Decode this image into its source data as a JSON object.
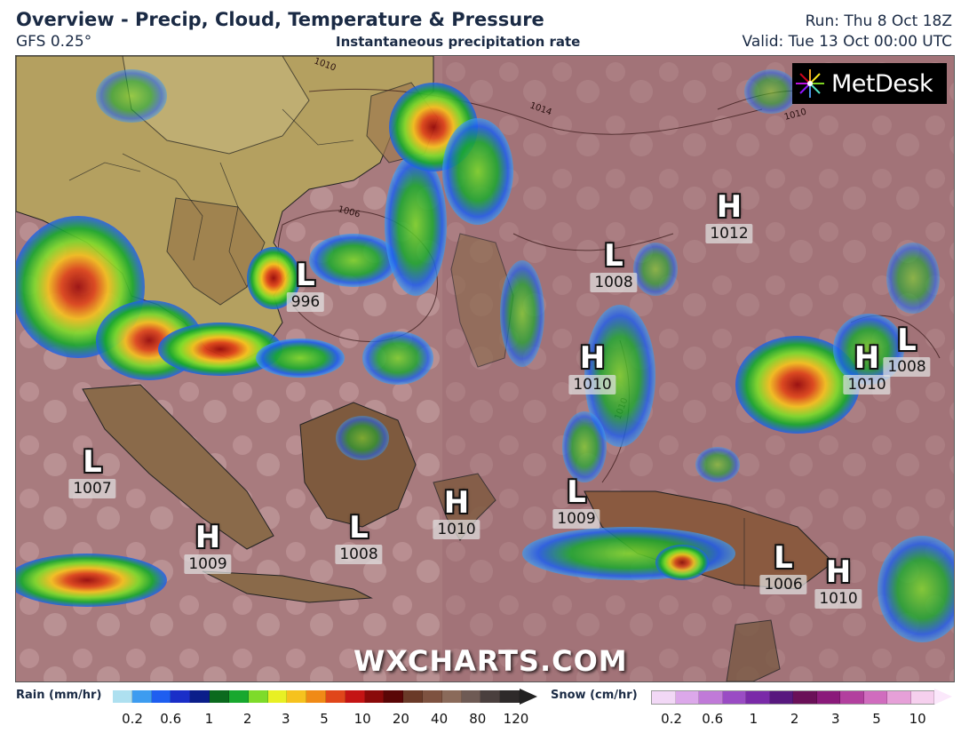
{
  "header": {
    "title": "Overview - Precip, Cloud, Temperature & Pressure",
    "model": "GFS 0.25°",
    "subtitle": "Instantaneous precipitation rate",
    "run": "Run: Thu 8 Oct 18Z",
    "valid": "Valid: Tue 13 Oct 00:00 UTC"
  },
  "branding": {
    "logo_text": "MetDesk",
    "watermark": "WXCHARTS.COM"
  },
  "pressure_centers": [
    {
      "type": "L",
      "value": "996"
    },
    {
      "type": "H",
      "value": "1012"
    },
    {
      "type": "L",
      "value": "1008"
    },
    {
      "type": "H",
      "value": "1010"
    },
    {
      "type": "H",
      "value": "1010"
    },
    {
      "type": "L",
      "value": "1008"
    },
    {
      "type": "L",
      "value": "1007"
    },
    {
      "type": "H",
      "value": "1009"
    },
    {
      "type": "L",
      "value": "1008"
    },
    {
      "type": "H",
      "value": "1010"
    },
    {
      "type": "L",
      "value": "1009"
    },
    {
      "type": "L",
      "value": "1006"
    },
    {
      "type": "H",
      "value": "1010"
    }
  ],
  "isobar_labels": [
    "1014",
    "1010",
    "1006",
    "1010",
    "1010"
  ],
  "legend": {
    "rain": {
      "title": "Rain (mm/hr)",
      "ticks": [
        "0.2",
        "0.6",
        "1",
        "2",
        "3",
        "5",
        "10",
        "20",
        "40",
        "80",
        "120"
      ],
      "colors": [
        "#aee0f0",
        "#3d9cf0",
        "#1e5ef0",
        "#1a2ec8",
        "#0b1e8a",
        "#0b6a1e",
        "#18a82e",
        "#7edb2a",
        "#e8f024",
        "#f6c21e",
        "#f08a16",
        "#e0461a",
        "#c41414",
        "#8a0a0a",
        "#5a0606",
        "#6a3a28",
        "#7e5240",
        "#8a6a5a",
        "#6e5a54",
        "#4a3f3e",
        "#2e2a2a"
      ]
    },
    "snow": {
      "title": "Snow (cm/hr)",
      "ticks": [
        "0.2",
        "0.6",
        "1",
        "2",
        "3",
        "5",
        "10"
      ],
      "colors": [
        "#f2d8f6",
        "#dca8ea",
        "#c07ad8",
        "#9a4cc4",
        "#7a2aa8",
        "#58187e",
        "#6a1058",
        "#8a1a7a",
        "#b2409e",
        "#d06cbe",
        "#e6a0d8",
        "#f6d0ee"
      ]
    }
  }
}
